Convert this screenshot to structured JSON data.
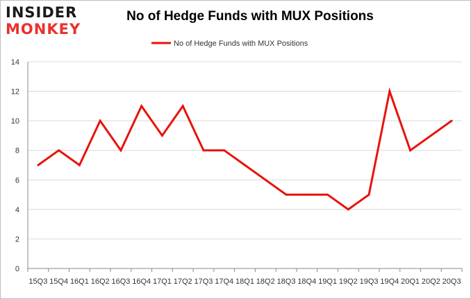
{
  "logo": {
    "line1": "INSIDER",
    "line2": "MONKEY"
  },
  "colors": {
    "series": "#e8120c",
    "grid": "#d9d9d9",
    "axis": "#888888",
    "logo_red": "#e8322f"
  },
  "chart_data": {
    "type": "line",
    "title": "No of Hedge Funds with MUX Positions",
    "xlabel": "",
    "ylabel": "",
    "categories": [
      "15Q3",
      "15Q4",
      "16Q1",
      "16Q2",
      "16Q3",
      "16Q4",
      "17Q1",
      "17Q2",
      "17Q3",
      "17Q4",
      "18Q1",
      "18Q2",
      "18Q3",
      "18Q4",
      "19Q1",
      "19Q2",
      "19Q3",
      "19Q4",
      "20Q1",
      "20Q2",
      "20Q3"
    ],
    "series": [
      {
        "name": "No of Hedge Funds with MUX Positions",
        "values": [
          7,
          8,
          7,
          10,
          8,
          11,
          9,
          11,
          8,
          8,
          7,
          6,
          5,
          5,
          5,
          4,
          5,
          12,
          8,
          9,
          10
        ]
      }
    ],
    "ylim": [
      0,
      14
    ],
    "yticks": [
      0,
      2,
      4,
      6,
      8,
      10,
      12,
      14
    ],
    "grid": true,
    "legend": "top-center"
  }
}
